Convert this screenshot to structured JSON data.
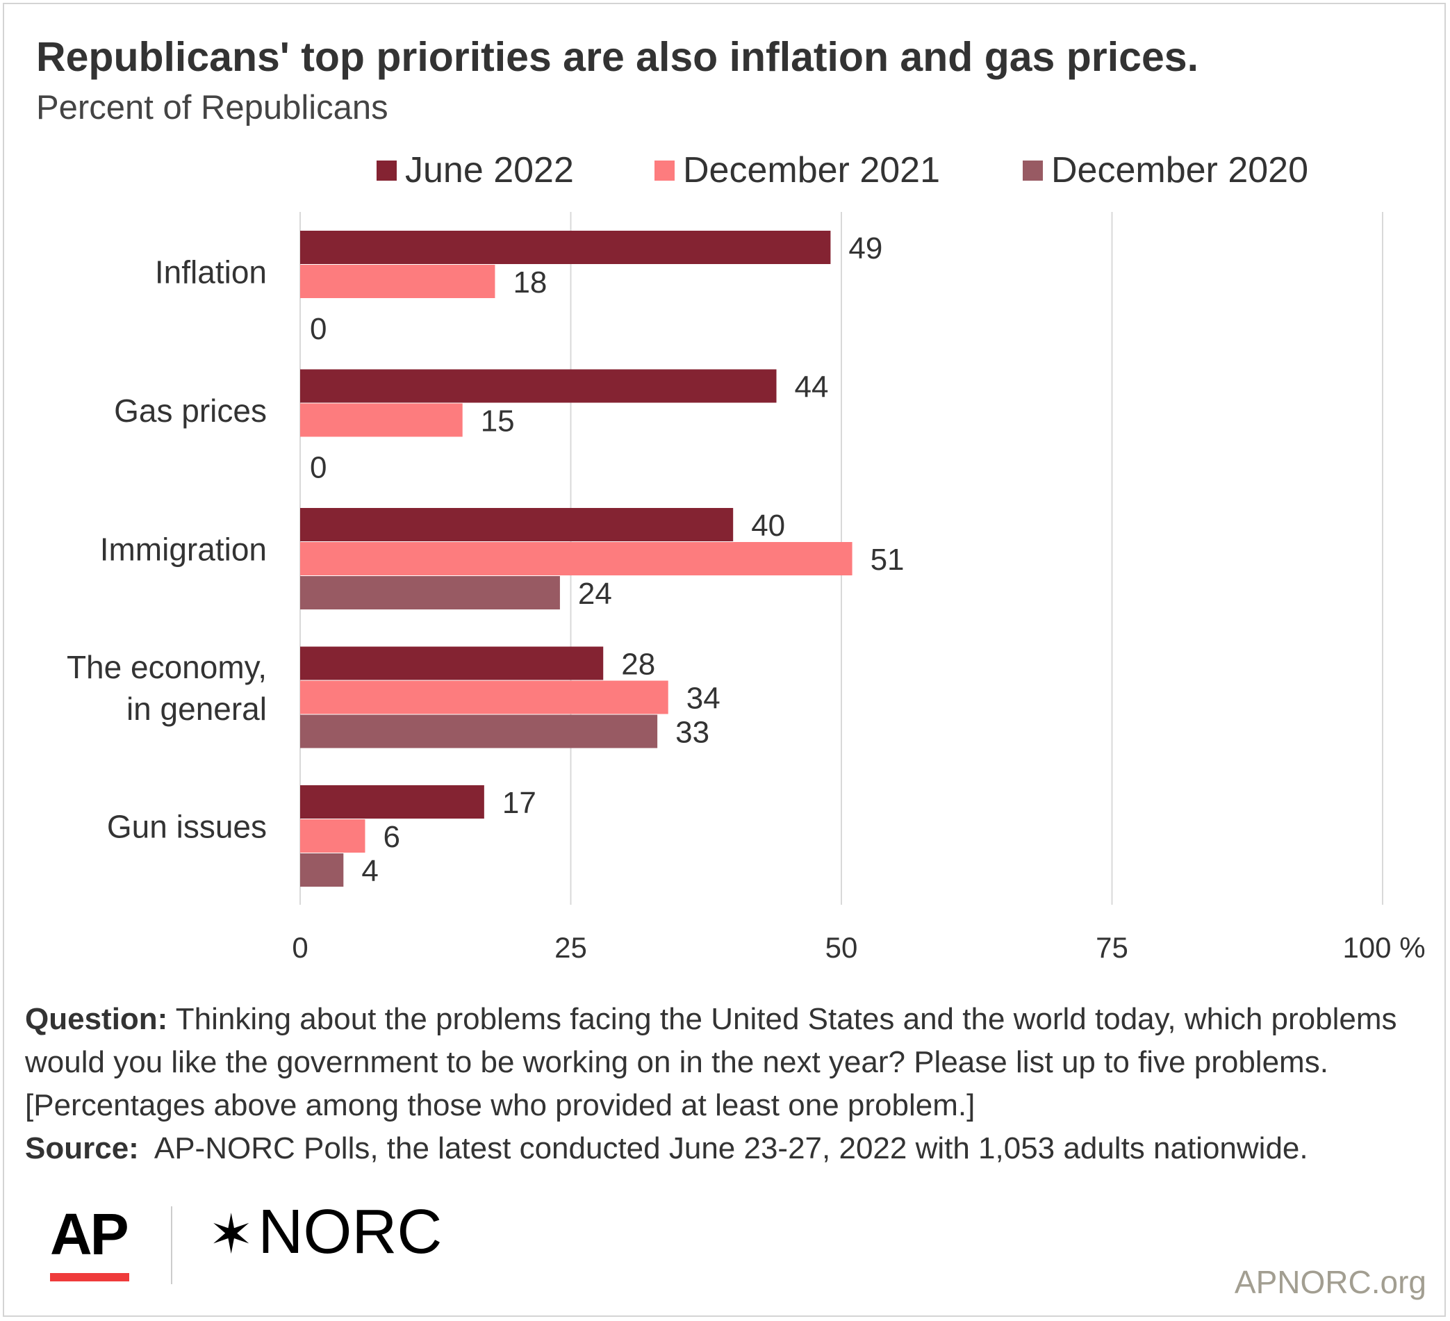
{
  "title": "Republicans' top priorities are also inflation and gas prices.",
  "subtitle": "Percent of Republicans",
  "colors": {
    "june_2022": "#842332",
    "december_2021": "#fd7c7e",
    "december_2020": "#985a63",
    "gridline": "#d9d9d9",
    "ap_bar": "#ef3b3b",
    "site_text": "#a29e91"
  },
  "legend": [
    {
      "label": "June 2022",
      "color": "#842332"
    },
    {
      "label": "December 2021",
      "color": "#fd7c7e"
    },
    {
      "label": "December 2020",
      "color": "#985a63"
    }
  ],
  "chart_data": {
    "type": "bar",
    "orientation": "horizontal",
    "categories": [
      [
        "Inflation"
      ],
      [
        "Gas prices"
      ],
      [
        "Immigration"
      ],
      [
        "The economy,",
        "in general"
      ],
      [
        "Gun issues"
      ]
    ],
    "series": [
      {
        "name": "June 2022",
        "color": "#842332",
        "values": [
          49,
          44,
          40,
          28,
          17
        ]
      },
      {
        "name": "December 2021",
        "color": "#fd7c7e",
        "values": [
          18,
          15,
          51,
          34,
          6
        ]
      },
      {
        "name": "December 2020",
        "color": "#985a63",
        "values": [
          0,
          0,
          24,
          33,
          4
        ]
      }
    ],
    "xlim": [
      0,
      100
    ],
    "ticks": [
      0,
      25,
      50,
      75,
      100
    ],
    "tick_labels": [
      "0",
      "25",
      "50",
      "75",
      "100 %"
    ],
    "grid": true,
    "legend_position": "top"
  },
  "notes": {
    "question_label": "Question:",
    "question_text": " Thinking about the problems facing the United States and the world today, which problems would you like the government to be working on in the next year? Please list up to five problems. [Percentages above among those who provided at least one problem.]",
    "source_label": "Source:",
    "source_text": "  AP-NORC Polls, the latest conducted June 23-27, 2022 with 1,053 adults nationwide."
  },
  "branding": {
    "ap": "AP",
    "norc_star": "✶",
    "norc": "NORC",
    "site": "APNORC.org"
  }
}
